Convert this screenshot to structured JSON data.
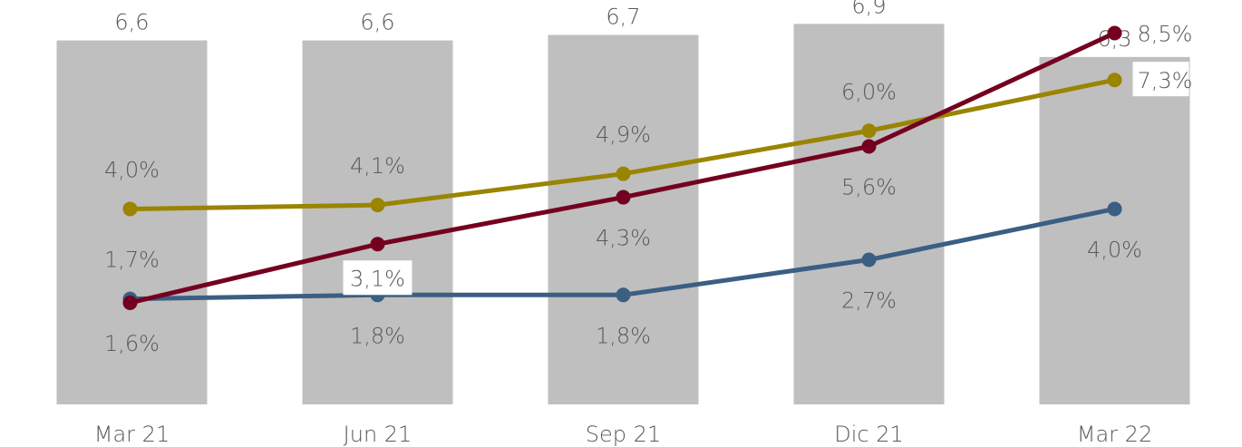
{
  "chart_data": {
    "type": "bar",
    "categories": [
      "Mar 21",
      "Jun 21",
      "Sep 21",
      "Dic 21",
      "Mar 22"
    ],
    "bars": {
      "values": [
        6.6,
        6.6,
        6.7,
        6.9,
        6.3
      ],
      "labels": [
        "6,6",
        "6,6",
        "6,7",
        "6,9",
        "6,3"
      ],
      "color": "#bfbfbf",
      "ylim": [
        0,
        7.3
      ]
    },
    "lines": {
      "ylim": [
        -1.0,
        9.3
      ],
      "series": [
        {
          "key": "gold",
          "color": "#9a8400",
          "values": [
            4.0,
            4.1,
            4.9,
            6.0,
            7.3
          ],
          "labels": [
            "4,0%",
            "4,1%",
            "4,9%",
            "6,0%",
            "7,3%"
          ]
        },
        {
          "key": "blue",
          "color": "#3b5f82",
          "values": [
            1.7,
            1.8,
            1.8,
            2.7,
            4.0
          ],
          "labels": [
            "1,7%",
            "1,8%",
            "1,8%",
            "2,7%",
            "4,0%"
          ]
        },
        {
          "key": "red",
          "color": "#74001f",
          "values": [
            1.6,
            3.1,
            4.3,
            5.6,
            8.5
          ],
          "labels": [
            "1,6%",
            "3,1%",
            "4,3%",
            "5,6%",
            "8,5%"
          ]
        }
      ]
    },
    "title": "",
    "xlabel": "",
    "ylabel": "",
    "grid": false,
    "legend": "none"
  }
}
